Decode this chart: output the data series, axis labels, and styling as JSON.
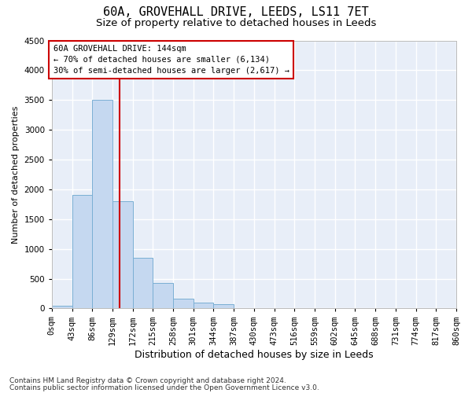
{
  "title": "60A, GROVEHALL DRIVE, LEEDS, LS11 7ET",
  "subtitle": "Size of property relative to detached houses in Leeds",
  "xlabel": "Distribution of detached houses by size in Leeds",
  "ylabel": "Number of detached properties",
  "bar_color": "#c5d8f0",
  "bar_edge_color": "#7aafd4",
  "background_color": "#e8eef8",
  "grid_color": "#ffffff",
  "annotation_box_color": "#cc0000",
  "vline_color": "#cc0000",
  "bins": [
    "0sqm",
    "43sqm",
    "86sqm",
    "129sqm",
    "172sqm",
    "215sqm",
    "258sqm",
    "301sqm",
    "344sqm",
    "387sqm",
    "430sqm",
    "473sqm",
    "516sqm",
    "559sqm",
    "602sqm",
    "645sqm",
    "688sqm",
    "731sqm",
    "774sqm",
    "817sqm",
    "860sqm"
  ],
  "bar_heights": [
    50,
    1900,
    3500,
    1800,
    850,
    430,
    170,
    95,
    70,
    0,
    0,
    0,
    0,
    0,
    0,
    0,
    0,
    0,
    0,
    0
  ],
  "property_label": "60A GROVEHALL DRIVE: 144sqm",
  "pct_smaller": "← 70% of detached houses are smaller (6,134)",
  "pct_larger": "30% of semi-detached houses are larger (2,617) →",
  "vline_x": 144,
  "ylim": [
    0,
    4500
  ],
  "yticks": [
    0,
    500,
    1000,
    1500,
    2000,
    2500,
    3000,
    3500,
    4000,
    4500
  ],
  "footnote1": "Contains HM Land Registry data © Crown copyright and database right 2024.",
  "footnote2": "Contains public sector information licensed under the Open Government Licence v3.0.",
  "title_fontsize": 11,
  "subtitle_fontsize": 9.5,
  "xlabel_fontsize": 9,
  "ylabel_fontsize": 8,
  "tick_fontsize": 7.5,
  "annotation_fontsize": 7.5,
  "footnote_fontsize": 6.5
}
